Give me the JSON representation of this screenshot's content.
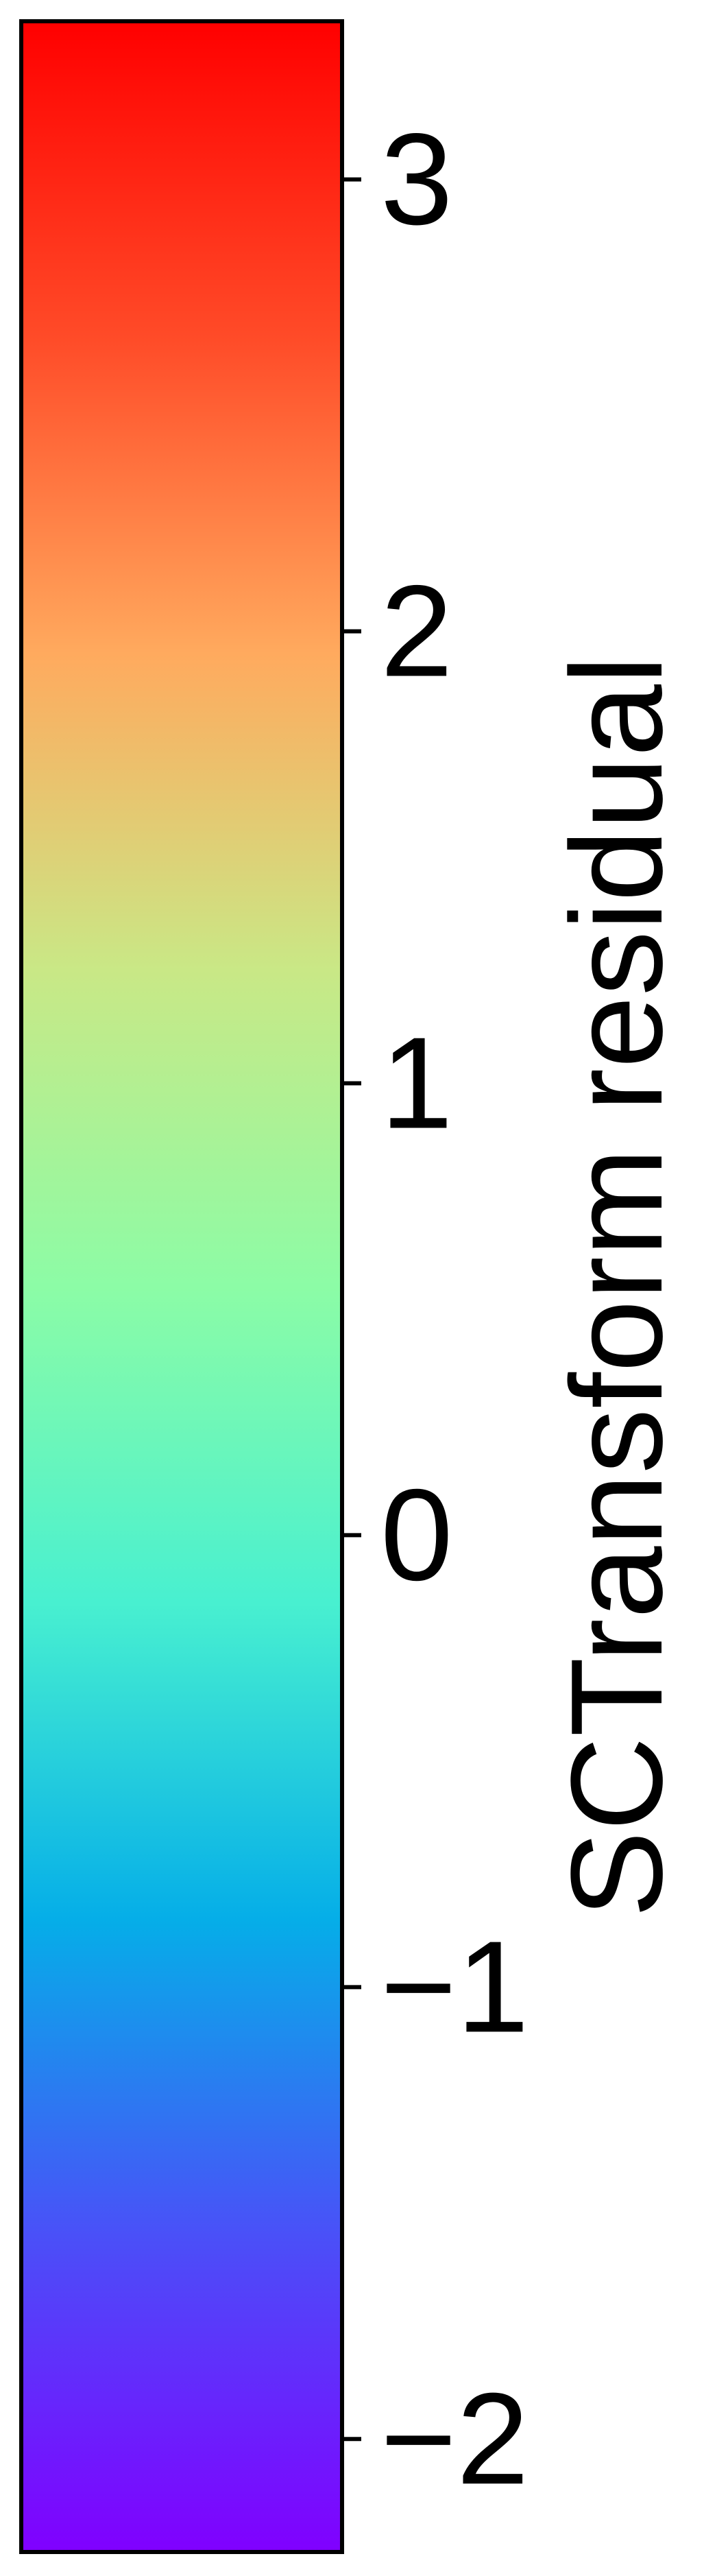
{
  "chart_data": {
    "type": "colorbar",
    "orientation": "vertical",
    "title": "",
    "label": "SCTransform residual",
    "range": [
      -2.25,
      3.35
    ],
    "ticks": [
      {
        "value": 3,
        "label": "3"
      },
      {
        "value": 2,
        "label": "2"
      },
      {
        "value": 1,
        "label": "1"
      },
      {
        "value": 0,
        "label": "0"
      },
      {
        "value": -1,
        "label": "−1"
      },
      {
        "value": -2,
        "label": "−2"
      }
    ],
    "colormap": "rainbow",
    "color_stops": [
      {
        "value": -2.25,
        "color": "#8000ff"
      },
      {
        "value": -1.55,
        "color": "#4a50f8"
      },
      {
        "value": -0.85,
        "color": "#05aee8"
      },
      {
        "value": -0.15,
        "color": "#48f0d0"
      },
      {
        "value": 0.55,
        "color": "#8cfca6"
      },
      {
        "value": 1.25,
        "color": "#c9e886"
      },
      {
        "value": 1.95,
        "color": "#ffaa5e"
      },
      {
        "value": 2.65,
        "color": "#ff4b28"
      },
      {
        "value": 3.35,
        "color": "#ff0000"
      }
    ]
  }
}
